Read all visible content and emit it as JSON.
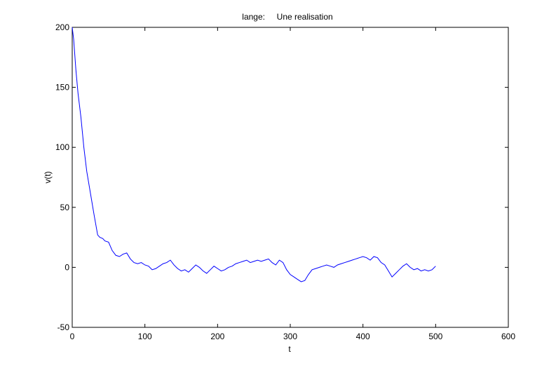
{
  "chart_data": {
    "type": "line",
    "title": "lange:     Une realisation",
    "xlabel": "t",
    "ylabel": "v(t)",
    "xlim": [
      0,
      600
    ],
    "ylim": [
      -50,
      200
    ],
    "xticks": [
      0,
      100,
      200,
      300,
      400,
      500,
      600
    ],
    "yticks": [
      -50,
      0,
      50,
      100,
      150,
      200
    ],
    "grid": false,
    "legend": "none",
    "series": [
      {
        "color": "#0000ff",
        "x": [
          0,
          2,
          5,
          8,
          12,
          16,
          20,
          25,
          30,
          35,
          38,
          42,
          45,
          50,
          55,
          60,
          65,
          70,
          75,
          80,
          85,
          90,
          95,
          100,
          105,
          110,
          115,
          120,
          125,
          130,
          135,
          140,
          145,
          150,
          155,
          160,
          165,
          170,
          175,
          180,
          185,
          190,
          195,
          200,
          205,
          210,
          215,
          220,
          225,
          230,
          235,
          240,
          245,
          250,
          255,
          260,
          265,
          270,
          275,
          280,
          285,
          290,
          295,
          300,
          305,
          310,
          315,
          320,
          325,
          330,
          335,
          340,
          345,
          350,
          355,
          360,
          365,
          370,
          375,
          380,
          385,
          390,
          395,
          400,
          405,
          410,
          415,
          420,
          425,
          430,
          435,
          440,
          445,
          450,
          455,
          460,
          465,
          470,
          475,
          480,
          485,
          490,
          495,
          500
        ],
        "y": [
          200,
          190,
          165,
          145,
          125,
          100,
          80,
          62,
          44,
          27,
          25,
          24,
          22,
          21,
          14,
          10,
          9,
          11,
          12,
          7,
          4,
          3,
          4,
          2,
          1,
          -2,
          -1,
          1,
          3,
          4,
          6,
          2,
          -1,
          -3,
          -2,
          -4,
          -1,
          2,
          0,
          -3,
          -5,
          -2,
          1,
          -1,
          -3,
          -2,
          0,
          1,
          3,
          4,
          5,
          6,
          4,
          5,
          6,
          5,
          6,
          7,
          4,
          2,
          6,
          4,
          -2,
          -6,
          -8,
          -10,
          -12,
          -11,
          -6,
          -2,
          -1,
          0,
          1,
          2,
          1,
          0,
          2,
          3,
          4,
          5,
          6,
          7,
          8,
          9,
          8,
          6,
          9,
          8,
          4,
          2,
          -3,
          -8,
          -5,
          -2,
          1,
          3,
          0,
          -2,
          -1,
          -3,
          -2,
          -3,
          -2,
          1
        ]
      }
    ]
  }
}
